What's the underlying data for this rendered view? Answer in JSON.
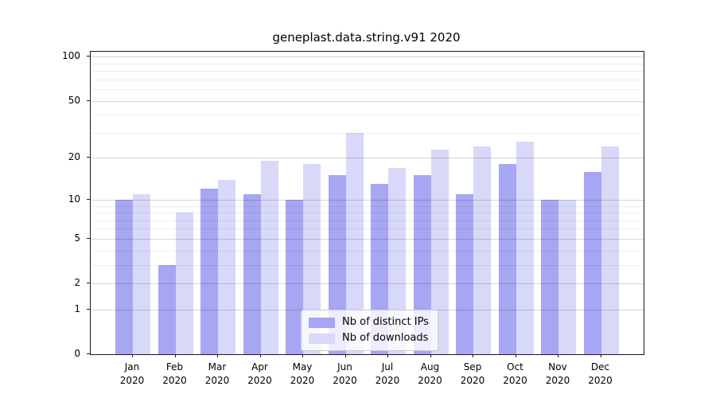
{
  "title": "geneplast.data.string.v91 2020",
  "colors": {
    "distinct_ips_bar": "#a6a6f3",
    "downloads_bar": "#d8d8f9",
    "spine": "#1a1a1a",
    "legend_border": "#cccccc"
  },
  "y_axis": {
    "tick_labels": [
      "100",
      "50",
      "20",
      "10",
      "5",
      "2",
      "1",
      "0"
    ],
    "tick_values": [
      100,
      50,
      20,
      10,
      5,
      2,
      1,
      0
    ]
  },
  "x_axis": {
    "year": "2020",
    "months": [
      "Jan",
      "Feb",
      "Mar",
      "Apr",
      "May",
      "Jun",
      "Jul",
      "Aug",
      "Sep",
      "Oct",
      "Nov",
      "Dec"
    ]
  },
  "legend": {
    "items": [
      {
        "label": "Nb of distinct IPs",
        "series": "ips"
      },
      {
        "label": "Nb of downloads",
        "series": "downloads"
      }
    ]
  },
  "chart_data": {
    "type": "bar",
    "title": "geneplast.data.string.v91 2020",
    "categories": [
      "Jan 2020",
      "Feb 2020",
      "Mar 2020",
      "Apr 2020",
      "May 2020",
      "Jun 2020",
      "Jul 2020",
      "Aug 2020",
      "Sep 2020",
      "Oct 2020",
      "Nov 2020",
      "Dec 2020"
    ],
    "series": [
      {
        "name": "Nb of distinct IPs",
        "color": "#a6a6f3",
        "values": [
          10,
          3,
          12,
          11,
          10,
          15,
          13,
          15,
          11,
          18,
          10,
          16
        ]
      },
      {
        "name": "Nb of downloads",
        "color": "#d8d8f9",
        "values": [
          11,
          8,
          14,
          19,
          18,
          30,
          17,
          23,
          24,
          26,
          10,
          24
        ]
      }
    ],
    "xlabel": "",
    "ylabel": "",
    "yscale": "log1p",
    "ylim": [
      0,
      108
    ],
    "y_ticks_major": [
      1,
      2,
      5,
      10,
      20,
      50,
      100
    ],
    "y_ticks_minor": [
      3,
      4,
      6,
      7,
      8,
      9,
      30,
      40,
      60,
      70,
      80,
      90
    ],
    "grid": "both",
    "legend_position": "lower center"
  }
}
